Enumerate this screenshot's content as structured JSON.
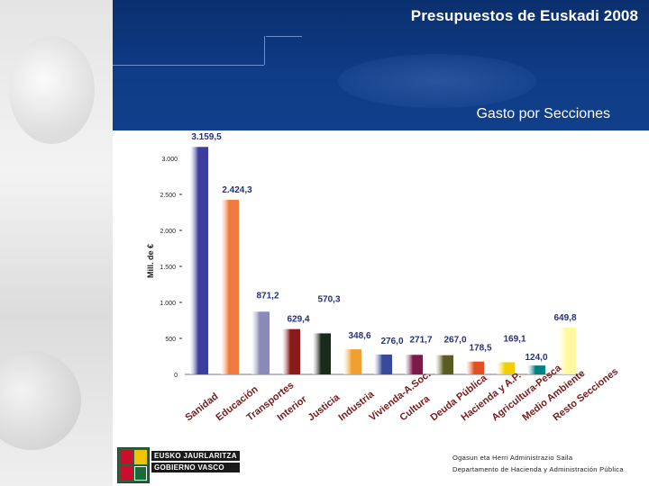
{
  "header": {
    "title": "Presupuestos de Euskadi 2008",
    "subtitle": "Gasto por Secciones"
  },
  "colors": {
    "header_bg": "#0e3c86",
    "series": [
      "#3d3d9e",
      "#f07a3c",
      "#8a8ab8",
      "#8a1a1a",
      "#1b2b1b",
      "#f0a030",
      "#3a4a9a",
      "#7a1a4a",
      "#5a5a22",
      "#e05020",
      "#f0d000",
      "#008080",
      "#fff8a0"
    ]
  },
  "chart_data": {
    "type": "bar",
    "title": "Gasto por Secciones",
    "ylabel": "Mill. de €",
    "xlabel": "",
    "ylim": [
      0,
      3000
    ],
    "yticks": [
      0,
      500,
      1000,
      1500,
      2000,
      2500,
      3000
    ],
    "ytick_labels": [
      "0",
      "500",
      "1.000",
      "1.500",
      "2.000",
      "2.500",
      "3.000"
    ],
    "grid": false,
    "categories": [
      "Sanidad",
      "Educación",
      "Transportes",
      "Interior",
      "Justicia",
      "Industria",
      "Vivienda-A.Soc.",
      "Cultura",
      "Deuda Pública",
      "Hacienda y A.P.",
      "Agricultura-Pesca",
      "Medio Ambiente",
      "Resto Secciones"
    ],
    "values": [
      3159.5,
      2424.3,
      871.2,
      629.4,
      570.3,
      348.6,
      276.0,
      271.7,
      267.0,
      178.5,
      169.1,
      124.0,
      649.8
    ],
    "value_labels": [
      "3.159,5",
      "2.424,3",
      "871,2",
      "629,4",
      "570,3",
      "348,6",
      "276,0",
      "271,7",
      "267,0",
      "178,5",
      "169,1",
      "124,0",
      "649,8"
    ]
  },
  "footer": {
    "logo_line1": "EUSKO JAURLARITZA",
    "logo_line2": "GOBIERNO VASCO",
    "credit_line1": "Ogasun eta Herri Administrazio Saila",
    "credit_line2": "Departamento de Hacienda y Administración Pública"
  }
}
